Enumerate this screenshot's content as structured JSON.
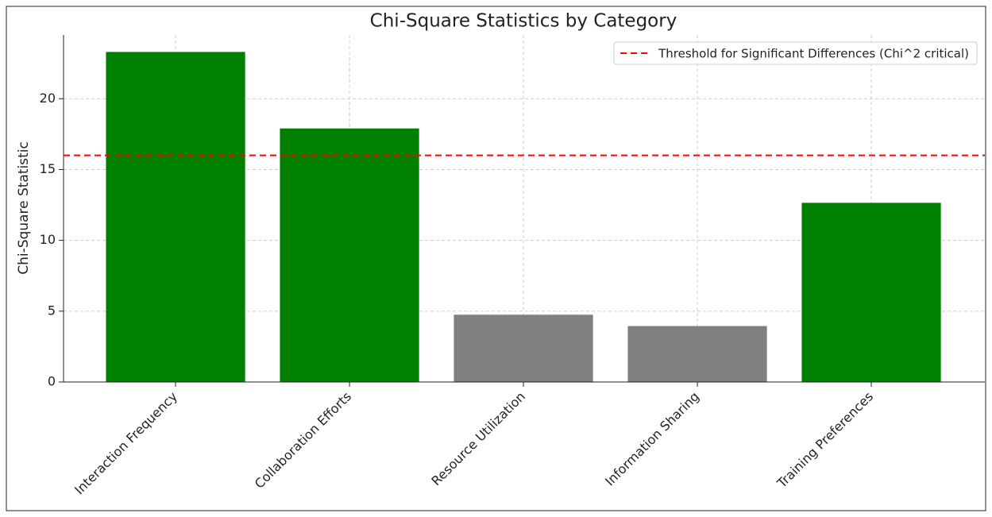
{
  "chart_data": {
    "type": "bar",
    "title": "Chi-Square Statistics by Category",
    "ylabel": "Chi-Square Statistic",
    "categories": [
      "Interaction Frequency",
      "Collaboration Efforts",
      "Resource Utilization",
      "Information Sharing",
      "Training Preferences"
    ],
    "values": [
      23.3,
      17.9,
      4.75,
      3.95,
      12.65
    ],
    "colors": [
      "#008000",
      "#008000",
      "#808080",
      "#808080",
      "#008000"
    ],
    "ylim": [
      0,
      24.5
    ],
    "yticks": [
      0,
      5,
      10,
      15,
      20
    ],
    "grid": true,
    "threshold": {
      "value": 16,
      "label": "Threshold for Significant Differences (Chi^2 critical)",
      "color": "#ff0000"
    },
    "legend": "upper right"
  }
}
